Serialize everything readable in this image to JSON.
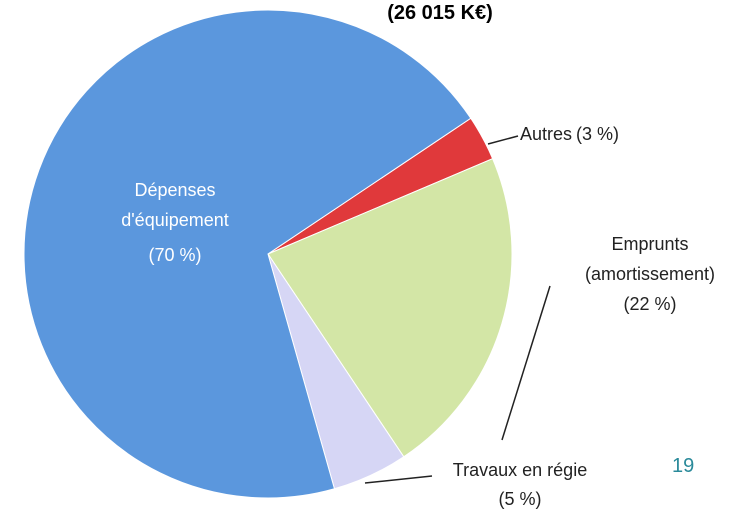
{
  "chart_data": {
    "type": "pie",
    "title": "(26 015 K€)",
    "categories": [
      "Autres",
      "Emprunts (amortissement)",
      "Travaux en régie",
      "Dépenses d'équipement"
    ],
    "values": [
      3,
      22,
      5,
      70
    ],
    "value_labels": [
      "(3 %)",
      "(22 %)",
      "(5 %)",
      "(70 %)"
    ],
    "colors": [
      "#e0393b",
      "#d3e6a6",
      "#d6d6f5",
      "#5b97dd"
    ]
  },
  "page_number": "19"
}
